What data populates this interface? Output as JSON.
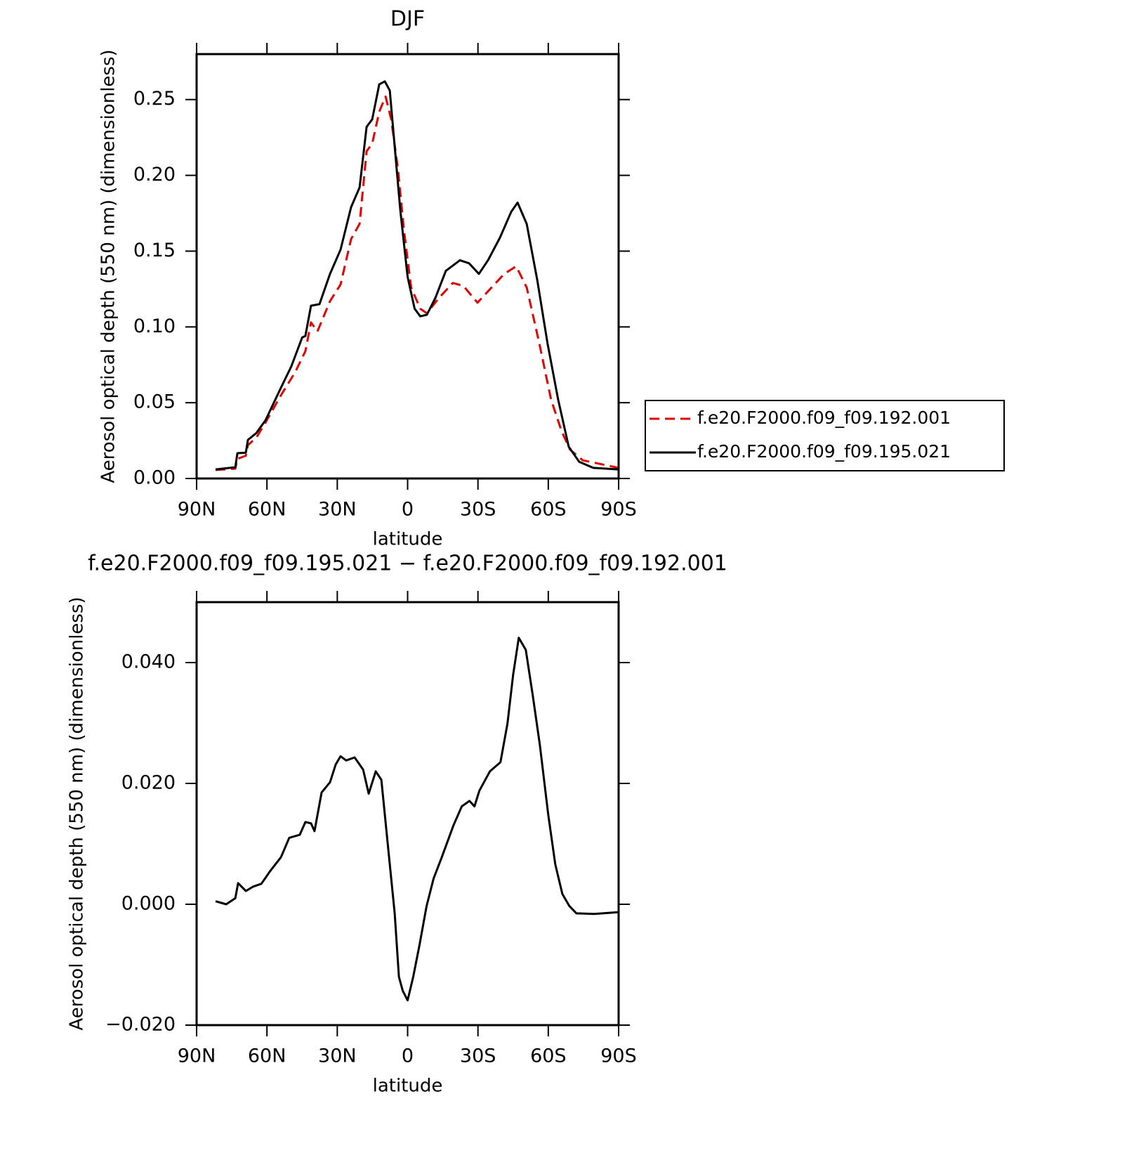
{
  "chart_data": [
    {
      "type": "line",
      "title": "DJF",
      "xlabel": "latitude",
      "ylabel": "Aerosol optical depth (550 nm) (dimensionless)",
      "xlim": [
        90,
        -90
      ],
      "xticks": [
        {
          "value": 90,
          "label": "90N"
        },
        {
          "value": 60,
          "label": "60N"
        },
        {
          "value": 30,
          "label": "30N"
        },
        0,
        {
          "value": -30,
          "label": "30S"
        },
        {
          "value": -60,
          "label": "60S"
        },
        {
          "value": -90,
          "label": "90S"
        }
      ],
      "ylim": [
        0,
        0.28
      ],
      "yticks": [
        {
          "value": 0,
          "label": "0.00"
        },
        0.05,
        {
          "value": 0.1,
          "label": "0.10"
        },
        0.15,
        {
          "value": 0.2,
          "label": "0.20"
        },
        0.25
      ],
      "legend": "right",
      "series": [
        {
          "name": "f.e20.F2000.f09_f09.192.001",
          "color": "#e00000",
          "dashed": true,
          "x": [
            81.9,
            73.5,
            72.6,
            69,
            68.1,
            64.5,
            60.6,
            54,
            48,
            43.6,
            41.2,
            38.5,
            33.1,
            28.6,
            24.1,
            20.5,
            17.5,
            15.1,
            12.1,
            9.4,
            7,
            4.2,
            1.5,
            -1.5,
            -5.4,
            -8.2,
            -13.3,
            -19.3,
            -23.8,
            -29.8,
            -35.8,
            -41.2,
            -46.3,
            -50.8,
            -56.2,
            -61.2,
            -65.7,
            -69.3,
            -74.7,
            -90
          ],
          "values": [
            0.0056,
            0.0065,
            0.013,
            0.015,
            0.022,
            0.027,
            0.037,
            0.055,
            0.07,
            0.084,
            0.103,
            0.097,
            0.117,
            0.128,
            0.158,
            0.168,
            0.216,
            0.221,
            0.242,
            0.252,
            0.237,
            0.205,
            0.163,
            0.126,
            0.112,
            0.109,
            0.119,
            0.129,
            0.127,
            0.116,
            0.126,
            0.135,
            0.14,
            0.126,
            0.089,
            0.052,
            0.031,
            0.019,
            0.012,
            0.007
          ]
        },
        {
          "name": "f.e20.F2000.f09_f09.195.021",
          "color": "#000000",
          "dashed": false,
          "x": [
            81.9,
            73.5,
            72.6,
            69,
            68.1,
            64.5,
            60.6,
            54,
            49.6,
            45,
            43.6,
            41.2,
            37.6,
            33.1,
            28.6,
            24.1,
            20.5,
            17.5,
            15.1,
            12.1,
            9.7,
            7.6,
            5.5,
            3.1,
            0,
            -3,
            -5.4,
            -8.2,
            -11.8,
            -16.3,
            -22.3,
            -26.2,
            -30.4,
            -34.3,
            -39.4,
            -44.2,
            -46.9,
            -50.8,
            -55.3,
            -59.7,
            -64.2,
            -68.7,
            -73.2,
            -79.2,
            -90
          ],
          "values": [
            0.006,
            0.0074,
            0.0167,
            0.017,
            0.0255,
            0.03,
            0.0385,
            0.06,
            0.074,
            0.093,
            0.094,
            0.114,
            0.115,
            0.135,
            0.151,
            0.179,
            0.192,
            0.232,
            0.237,
            0.26,
            0.262,
            0.256,
            0.219,
            0.177,
            0.133,
            0.112,
            0.107,
            0.108,
            0.119,
            0.137,
            0.144,
            0.142,
            0.135,
            0.144,
            0.159,
            0.176,
            0.182,
            0.168,
            0.131,
            0.089,
            0.052,
            0.021,
            0.011,
            0.007,
            0.006
          ]
        }
      ]
    },
    {
      "type": "line",
      "title": "f.e20.F2000.f09_f09.195.021 − f.e20.F2000.f09_f09.192.001",
      "xlabel": "latitude",
      "ylabel": "Aerosol optical depth (550 nm) (dimensionless)",
      "xlim": [
        90,
        -90
      ],
      "xticks": [
        {
          "value": 90,
          "label": "90N"
        },
        {
          "value": 60,
          "label": "60N"
        },
        {
          "value": 30,
          "label": "30N"
        },
        0,
        {
          "value": -30,
          "label": "30S"
        },
        {
          "value": -60,
          "label": "60S"
        },
        {
          "value": -90,
          "label": "90S"
        }
      ],
      "ylim": [
        -0.02,
        0.05
      ],
      "yticks": [
        {
          "value": -0.02,
          "label": "−0.020"
        },
        {
          "value": 0,
          "label": "0.000"
        },
        {
          "value": 0.02,
          "label": "0.020"
        },
        {
          "value": 0.04,
          "label": "0.040"
        }
      ],
      "color": "#000000",
      "x": [
        81.9,
        77.4,
        73.5,
        72.3,
        69,
        66,
        62.4,
        58.6,
        54,
        50.5,
        46,
        43.6,
        41.2,
        39.7,
        36.7,
        33.1,
        30.7,
        28.6,
        26.2,
        22.6,
        19,
        16.6,
        13.6,
        11.2,
        8.5,
        5.5,
        3.7,
        2.1,
        0,
        -2.4,
        -5.1,
        -8.1,
        -11.1,
        -14.4,
        -19.5,
        -23.1,
        -26.4,
        -28.5,
        -30.6,
        -35.1,
        -39.6,
        -42.6,
        -45,
        -47.4,
        -50.4,
        -53.4,
        -56.4,
        -60,
        -63,
        -66,
        -69,
        -72,
        -79.5,
        -90
      ],
      "values": [
        0.0005,
        0,
        0.001,
        0.0035,
        0.0022,
        0.0029,
        0.0034,
        0.0055,
        0.0078,
        0.011,
        0.0115,
        0.0136,
        0.0134,
        0.0121,
        0.0185,
        0.0202,
        0.0231,
        0.0245,
        0.0238,
        0.0243,
        0.0223,
        0.0183,
        0.022,
        0.0206,
        0.0101,
        -0.0015,
        -0.012,
        -0.0143,
        -0.0159,
        -0.012,
        -0.0067,
        -0.0003,
        0.0043,
        0.0076,
        0.013,
        0.0162,
        0.0171,
        0.0162,
        0.0188,
        0.022,
        0.0235,
        0.0299,
        0.038,
        0.0441,
        0.0421,
        0.0345,
        0.0264,
        0.0148,
        0.0066,
        0.0017,
        -0.0003,
        -0.0015,
        -0.0016,
        -0.0013
      ]
    }
  ]
}
